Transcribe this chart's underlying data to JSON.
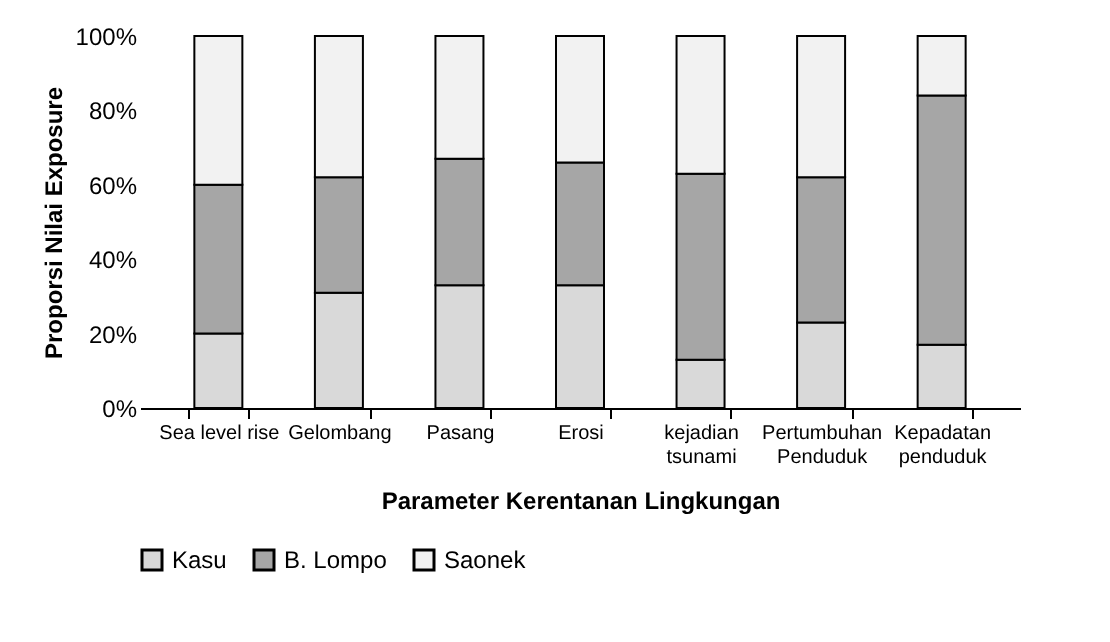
{
  "chart_data": {
    "type": "bar",
    "stacked": true,
    "xlabel": "Parameter Kerentanan Lingkungan",
    "ylabel": "Proporsi Nilai Exposure",
    "categories": [
      "Sea level rise",
      "Gelombang",
      "Pasang",
      "Erosi",
      "kejadian tsunami",
      "Pertumbuhan Penduduk",
      "Kepadatan penduduk"
    ],
    "series": [
      {
        "name": "Kasu",
        "color": "#d9d9d9",
        "values": [
          20,
          31,
          33,
          33,
          13,
          23,
          17
        ]
      },
      {
        "name": "B. Lompo",
        "color": "#a6a6a6",
        "values": [
          40,
          31,
          34,
          33,
          50,
          39,
          67
        ]
      },
      {
        "name": "Saonek",
        "color": "#f2f2f2",
        "values": [
          40,
          38,
          33,
          34,
          37,
          38,
          16
        ]
      }
    ],
    "ylim": [
      0,
      100
    ],
    "yticks": [
      {
        "value": 0,
        "label": "0%"
      },
      {
        "value": 20,
        "label": "20%"
      },
      {
        "value": 40,
        "label": "40%"
      },
      {
        "value": 60,
        "label": "60%"
      },
      {
        "value": 80,
        "label": "80%"
      },
      {
        "value": 100,
        "label": "100%"
      }
    ],
    "grid": false,
    "legend": "bottom"
  }
}
